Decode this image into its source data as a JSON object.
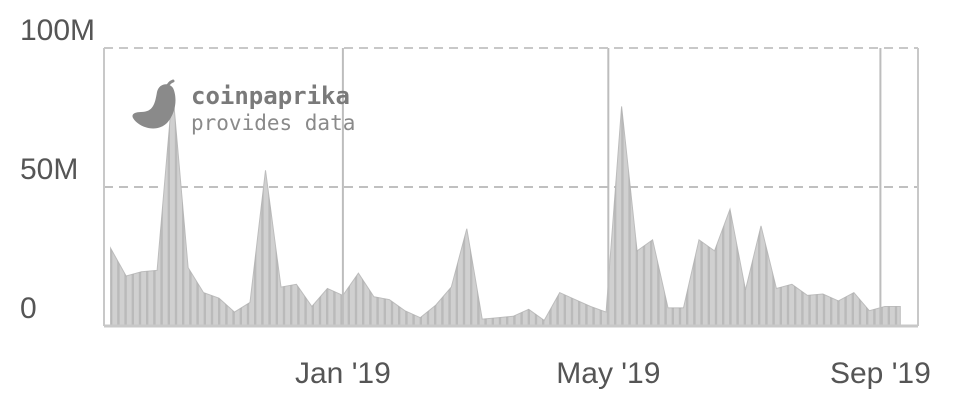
{
  "chart_data": {
    "type": "area",
    "title": "",
    "xlabel": "",
    "ylabel": "",
    "ylim": [
      0,
      100000000
    ],
    "y_ticks": [
      {
        "value": 0,
        "label": "0"
      },
      {
        "value": 50000000,
        "label": "50M"
      },
      {
        "value": 100000000,
        "label": "100M"
      }
    ],
    "x_ticks": [
      {
        "label": "Jan '19",
        "date": "2019-01-01"
      },
      {
        "label": "May '19",
        "date": "2019-05-01"
      },
      {
        "label": "Sep '19",
        "date": "2019-09-01"
      }
    ],
    "series": [
      {
        "color": "#d0d0d0",
        "x": [
          "2018-09-18",
          "2018-09-25",
          "2018-10-02",
          "2018-10-09",
          "2018-10-16",
          "2018-10-23",
          "2018-10-30",
          "2018-11-06",
          "2018-11-13",
          "2018-11-20",
          "2018-11-27",
          "2018-12-04",
          "2018-12-11",
          "2018-12-18",
          "2018-12-25",
          "2019-01-01",
          "2019-01-08",
          "2019-01-15",
          "2019-01-22",
          "2019-01-29",
          "2019-02-05",
          "2019-02-12",
          "2019-02-19",
          "2019-02-26",
          "2019-03-05",
          "2019-03-12",
          "2019-03-19",
          "2019-03-26",
          "2019-04-02",
          "2019-04-09",
          "2019-04-16",
          "2019-04-23",
          "2019-04-30",
          "2019-05-07",
          "2019-05-14",
          "2019-05-21",
          "2019-05-28",
          "2019-06-04",
          "2019-06-11",
          "2019-06-18",
          "2019-06-25",
          "2019-07-02",
          "2019-07-09",
          "2019-07-16",
          "2019-07-23",
          "2019-07-30",
          "2019-08-06",
          "2019-08-13",
          "2019-08-20",
          "2019-08-27",
          "2019-09-03",
          "2019-09-10"
        ],
        "values": [
          28000000,
          18000000,
          19500000,
          20000000,
          85000000,
          21000000,
          12000000,
          10000000,
          5000000,
          8500000,
          56000000,
          14000000,
          15000000,
          7000000,
          13500000,
          11000000,
          19000000,
          10500000,
          9500000,
          5500000,
          3000000,
          7500000,
          14000000,
          35000000,
          2500000,
          3000000,
          3500000,
          6000000,
          2000000,
          12000000,
          9500000,
          7000000,
          5000000,
          79000000,
          27000000,
          31000000,
          6500000,
          6500000,
          31000000,
          27000000,
          42000000,
          13000000,
          36000000,
          13500000,
          15000000,
          11000000,
          11500000,
          9000000,
          12000000,
          5500000,
          7000000,
          7000000
        ]
      }
    ],
    "watermark": {
      "name": "coinpaprika",
      "tagline": "provides data",
      "icon": "pepper-icon"
    },
    "colors": {
      "area_fill": "#d0d0d0",
      "area_line": "#bdbdbd",
      "bars": "#a8a8a8",
      "frame": "#c8c8c8",
      "gridline": "#c0c0c0",
      "vertical_line": "#bdbdbd",
      "tick_text": "#555555",
      "logo": "#8a8a8a"
    }
  }
}
